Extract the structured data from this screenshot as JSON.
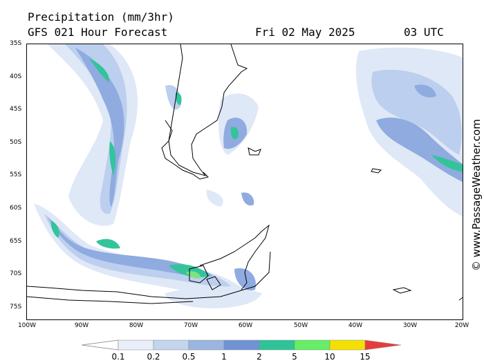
{
  "header": {
    "title": "Precipitation (mm/3hr)",
    "model": "GFS 021 Hour Forecast",
    "date": "Fri 02 May 2025",
    "time": "03 UTC"
  },
  "credit": "© www.PassageWeather.com",
  "axes": {
    "lat_labels": [
      "35S",
      "40S",
      "45S",
      "50S",
      "55S",
      "60S",
      "65S",
      "70S",
      "75S"
    ],
    "lon_labels": [
      "100W",
      "90W",
      "80W",
      "70W",
      "60W",
      "50W",
      "40W",
      "30W",
      "20W"
    ]
  },
  "legend": {
    "labels": [
      "0.1",
      "0.2",
      "0.5",
      "1",
      "2",
      "5",
      "10",
      "15"
    ],
    "colors": [
      "#e8eff9",
      "#c4d5ee",
      "#9ab5e0",
      "#6f93d4",
      "#2fc497",
      "#66ee66",
      "#f4e000",
      "#f79a00",
      "#e83c3c"
    ]
  },
  "map_colors": {
    "light": "#dfe8f6",
    "mid": "#bccfee",
    "blue": "#8fabe0",
    "teal": "#33c49a",
    "green": "#7fe27f"
  }
}
